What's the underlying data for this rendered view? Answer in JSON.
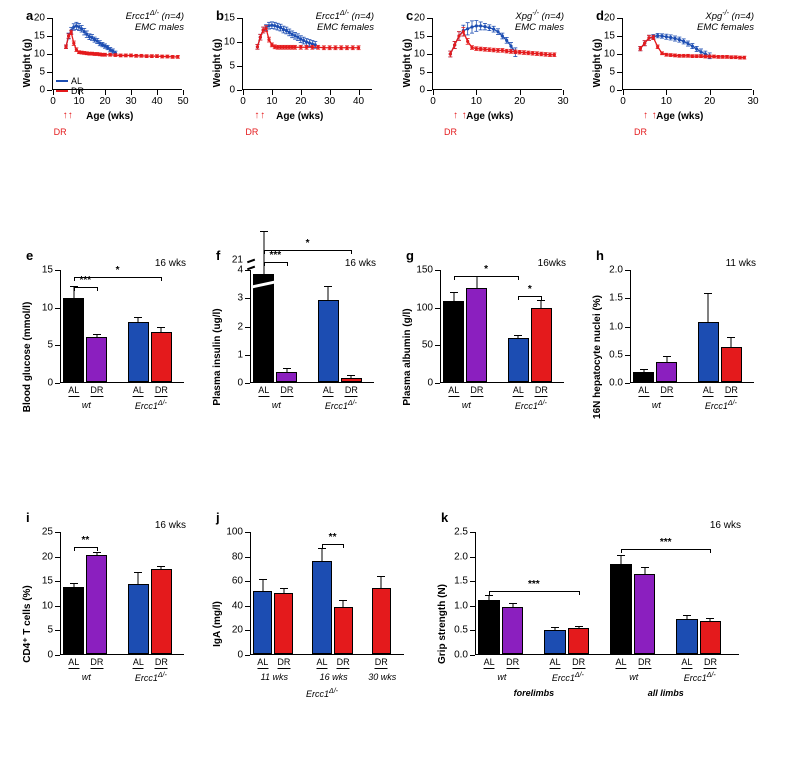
{
  "colors": {
    "al": "#1c4db2",
    "dr": "#e41a1c",
    "wt_al": "#000000",
    "wt_dr": "#8b1fbf",
    "mut_al": "#1c4db2",
    "mut_dr": "#e41a1c",
    "axis": "#000000",
    "bg": "#ffffff"
  },
  "linecharts": {
    "a": {
      "label": "a",
      "caption1": "Ercc1^(Δ/-) (n=4)",
      "caption2": "EMC males",
      "xlabel": "Age (wks)",
      "ylabel": "Weight (g)",
      "xlim": [
        0,
        50
      ],
      "ylim": [
        0,
        20
      ],
      "xtick_step": 10,
      "ytick_step": 5,
      "dr_marks": [
        6,
        8
      ],
      "al": {
        "x": [
          5,
          6,
          7,
          8,
          9,
          10,
          11,
          12,
          13,
          14,
          15,
          16,
          17,
          18,
          19,
          20,
          21,
          22,
          23,
          24
        ],
        "y": [
          12,
          15,
          16.5,
          17.5,
          17.8,
          17.5,
          17,
          16.2,
          15.5,
          14.8,
          14.6,
          14.0,
          13.6,
          13.0,
          12.6,
          12.2,
          11.8,
          11.2,
          10.8,
          10.2
        ],
        "err": [
          0.5,
          0.8,
          0.9,
          0.9,
          1.0,
          1.0,
          0.9,
          0.9,
          0.9,
          0.8,
          0.8,
          0.7,
          0.7,
          0.7,
          0.6,
          0.6,
          0.6,
          0.6,
          0.6,
          0.6
        ]
      },
      "dr": {
        "x": [
          5,
          6,
          7,
          8,
          9,
          10,
          11,
          12,
          13,
          14,
          15,
          16,
          17,
          18,
          19,
          20,
          22,
          24,
          26,
          28,
          30,
          32,
          34,
          36,
          38,
          40,
          42,
          44,
          46,
          48
        ],
        "y": [
          12,
          15,
          16,
          13,
          11.2,
          10.5,
          10.4,
          10.3,
          10.2,
          10.1,
          10.1,
          10.0,
          10.0,
          9.9,
          9.8,
          9.8,
          9.8,
          9.7,
          9.6,
          9.6,
          9.6,
          9.5,
          9.5,
          9.4,
          9.4,
          9.4,
          9.3,
          9.3,
          9.2,
          9.2
        ],
        "err": [
          0.5,
          0.6,
          0.6,
          0.6,
          0.5,
          0.4,
          0.4,
          0.4,
          0.4,
          0.4,
          0.4,
          0.4,
          0.4,
          0.4,
          0.4,
          0.4,
          0.4,
          0.4,
          0.4,
          0.4,
          0.4,
          0.4,
          0.4,
          0.4,
          0.4,
          0.4,
          0.4,
          0.4,
          0.4,
          0.4
        ]
      },
      "show_legend": true
    },
    "b": {
      "label": "b",
      "caption1": "Ercc1^(Δ/-) (n=4)",
      "caption2": "EMC females",
      "xlabel": "Age (wks)",
      "ylabel": "Weight (g)",
      "xlim": [
        0,
        45
      ],
      "ylim": [
        0,
        15
      ],
      "xtick_step": 10,
      "ytick_step": 5,
      "dr_marks": [
        6,
        8
      ],
      "al": {
        "x": [
          5,
          6,
          7,
          8,
          9,
          10,
          11,
          12,
          13,
          14,
          15,
          16,
          17,
          18,
          19,
          20,
          21,
          22,
          23,
          24,
          25
        ],
        "y": [
          9,
          11,
          12.5,
          13,
          13.4,
          13.5,
          13.4,
          13.2,
          13,
          12.6,
          12.4,
          12.0,
          11.6,
          11.3,
          11.0,
          10.6,
          10.3,
          10.0,
          9.8,
          9.6,
          9.4
        ],
        "err": [
          0.5,
          0.6,
          0.6,
          0.6,
          0.7,
          0.7,
          0.7,
          0.7,
          0.7,
          0.7,
          0.7,
          0.7,
          0.7,
          0.7,
          0.7,
          0.7,
          0.7,
          0.7,
          0.7,
          0.7,
          0.7
        ]
      },
      "dr": {
        "x": [
          5,
          6,
          7,
          8,
          9,
          10,
          11,
          12,
          13,
          14,
          15,
          16,
          17,
          18,
          20,
          22,
          24,
          26,
          28,
          30,
          32,
          34,
          36,
          38,
          40
        ],
        "y": [
          9,
          11,
          12.5,
          12.8,
          10.5,
          9.4,
          9.0,
          8.9,
          8.9,
          8.9,
          8.9,
          8.9,
          8.9,
          8.9,
          8.9,
          8.9,
          8.9,
          8.9,
          8.8,
          8.8,
          8.8,
          8.8,
          8.8,
          8.8,
          8.8
        ],
        "err": [
          0.5,
          0.6,
          0.6,
          0.6,
          0.5,
          0.4,
          0.4,
          0.4,
          0.4,
          0.4,
          0.4,
          0.4,
          0.4,
          0.4,
          0.4,
          0.4,
          0.4,
          0.4,
          0.4,
          0.4,
          0.4,
          0.4,
          0.4,
          0.4,
          0.4
        ]
      }
    },
    "c": {
      "label": "c",
      "caption1": "Xpg^(-/-) (n=4)",
      "caption2": "EMC males",
      "xlabel": "Age (wks)",
      "ylabel": "Weight (g)",
      "xlim": [
        0,
        30
      ],
      "ylim": [
        0,
        20
      ],
      "xtick_step": 10,
      "ytick_step": 5,
      "dr_marks": [
        6,
        8
      ],
      "al": {
        "x": [
          4,
          5,
          6,
          7,
          8,
          9,
          10,
          11,
          12,
          13,
          14,
          15,
          16,
          17,
          18,
          19
        ],
        "y": [
          10,
          12.5,
          15,
          16.5,
          17,
          17.5,
          17.8,
          17.8,
          17.6,
          17.3,
          16.9,
          16.2,
          15.0,
          13.8,
          12.2,
          10.5
        ],
        "err": [
          0.8,
          1.0,
          1.2,
          1.5,
          1.7,
          1.7,
          1.5,
          1.1,
          0.9,
          0.8,
          0.8,
          0.8,
          0.8,
          0.8,
          1.0,
          1.2
        ]
      },
      "dr": {
        "x": [
          4,
          5,
          6,
          7,
          8,
          9,
          10,
          11,
          12,
          13,
          14,
          15,
          16,
          17,
          18,
          19,
          20,
          21,
          22,
          23,
          24,
          25,
          26,
          27,
          28
        ],
        "y": [
          10,
          12.5,
          15,
          16.2,
          13.5,
          11.8,
          11.5,
          11.4,
          11.3,
          11.2,
          11.1,
          11.0,
          11.0,
          10.8,
          10.7,
          10.6,
          10.5,
          10.4,
          10.3,
          10.2,
          10.1,
          10.0,
          9.9,
          9.8,
          9.8
        ],
        "err": [
          0.8,
          1.0,
          1.2,
          1.2,
          0.8,
          0.5,
          0.5,
          0.5,
          0.5,
          0.5,
          0.5,
          0.5,
          0.5,
          0.5,
          0.5,
          0.5,
          0.5,
          0.5,
          0.5,
          0.5,
          0.5,
          0.5,
          0.5,
          0.5,
          0.5
        ]
      }
    },
    "d": {
      "label": "d",
      "caption1": "Xpg^(-/-) (n=4)",
      "caption2": "EMC females",
      "xlabel": "Age (wks)",
      "ylabel": "Weight (g)",
      "xlim": [
        0,
        30
      ],
      "ylim": [
        0,
        20
      ],
      "xtick_step": 10,
      "ytick_step": 5,
      "dr_marks": [
        6,
        8
      ],
      "al": {
        "x": [
          4,
          5,
          6,
          7,
          8,
          9,
          10,
          11,
          12,
          13,
          14,
          15,
          16,
          17,
          18,
          19,
          20
        ],
        "y": [
          11.5,
          13,
          14.5,
          14.8,
          15.1,
          15.0,
          14.8,
          14.6,
          14.3,
          14.0,
          13.5,
          12.9,
          12.2,
          11.4,
          10.6,
          10,
          9.5
        ],
        "err": [
          0.6,
          0.7,
          0.7,
          0.6,
          0.6,
          0.6,
          0.7,
          0.7,
          0.7,
          0.7,
          0.7,
          0.7,
          0.7,
          0.7,
          0.8,
          0.8,
          0.8
        ]
      },
      "dr": {
        "x": [
          4,
          5,
          6,
          7,
          8,
          9,
          10,
          11,
          12,
          13,
          14,
          15,
          16,
          17,
          18,
          19,
          20,
          21,
          22,
          23,
          24,
          25,
          26,
          27,
          28
        ],
        "y": [
          11.5,
          13,
          14.5,
          14.6,
          12.0,
          10.2,
          9.8,
          9.7,
          9.6,
          9.5,
          9.5,
          9.5,
          9.4,
          9.4,
          9.4,
          9.3,
          9.3,
          9.3,
          9.2,
          9.2,
          9.2,
          9.1,
          9.1,
          9.0,
          9.0
        ],
        "err": [
          0.6,
          0.7,
          0.7,
          0.6,
          0.5,
          0.4,
          0.4,
          0.4,
          0.4,
          0.4,
          0.4,
          0.4,
          0.4,
          0.4,
          0.4,
          0.4,
          0.4,
          0.4,
          0.4,
          0.4,
          0.4,
          0.4,
          0.4,
          0.4,
          0.4
        ]
      }
    }
  },
  "barcharts": {
    "e": {
      "label": "e",
      "ylabel": "Blood glucose (mmol/l)",
      "corner": "16 wks",
      "ylim": [
        0,
        15
      ],
      "ytick_step": 5,
      "groups": [
        {
          "title": "wt",
          "bars": [
            {
              "lab": "AL",
              "v": 11.2,
              "e": 1.4,
              "c": "wt_al"
            },
            {
              "lab": "DR",
              "v": 6.0,
              "e": 0.3,
              "c": "wt_dr"
            }
          ]
        },
        {
          "title": "Ercc1^(Δ/-)",
          "bars": [
            {
              "lab": "AL",
              "v": 8.0,
              "e": 0.5,
              "c": "mut_al"
            },
            {
              "lab": "DR",
              "v": 6.6,
              "e": 0.6,
              "c": "mut_dr"
            }
          ]
        }
      ],
      "sig": [
        {
          "from": 0,
          "to": 1,
          "text": "***",
          "y": 12.7
        },
        {
          "from": 0,
          "to": 3,
          "text": "*",
          "y": 14.1
        }
      ]
    },
    "f": {
      "label": "f",
      "ylabel": "Plasma insulin (ug/l)",
      "corner": "16 wks",
      "ylim": [
        0,
        4
      ],
      "ytick_step": 1,
      "break_upper": 21,
      "groups": [
        {
          "title": "wt",
          "bars": [
            {
              "lab": "AL",
              "v": 20.8,
              "e": 1.5,
              "c": "wt_al",
              "broken": true,
              "disp": 3.82
            },
            {
              "lab": "DR",
              "v": 0.35,
              "e": 0.1,
              "c": "wt_dr"
            }
          ]
        },
        {
          "title": "Ercc1^(Δ/-)",
          "bars": [
            {
              "lab": "AL",
              "v": 2.9,
              "e": 0.45,
              "c": "mut_al"
            },
            {
              "lab": "DR",
              "v": 0.15,
              "e": 0.08,
              "c": "mut_dr"
            }
          ]
        }
      ],
      "sig": [
        {
          "from": 0,
          "to": 1,
          "text": "***",
          "y": 4.15,
          "disp": true
        },
        {
          "from": 0,
          "to": 3,
          "text": "*",
          "y": 4.55,
          "disp": true
        }
      ]
    },
    "g": {
      "label": "g",
      "ylabel": "Plasma albumin (g/l)",
      "corner": "16wks",
      "ylim": [
        0,
        150
      ],
      "ytick_step": 50,
      "groups": [
        {
          "title": "wt",
          "bars": [
            {
              "lab": "AL",
              "v": 108,
              "e": 10,
              "c": "wt_al"
            },
            {
              "lab": "DR",
              "v": 125,
              "e": 14,
              "c": "wt_dr"
            }
          ]
        },
        {
          "title": "Ercc1^(Δ/-)",
          "bars": [
            {
              "lab": "AL",
              "v": 58,
              "e": 3,
              "c": "mut_al"
            },
            {
              "lab": "DR",
              "v": 98,
              "e": 9,
              "c": "mut_dr"
            }
          ]
        }
      ],
      "sig": [
        {
          "from": 0,
          "to": 2,
          "text": "*",
          "y": 142
        },
        {
          "from": 2,
          "to": 3,
          "text": "*",
          "y": 115
        }
      ]
    },
    "h": {
      "label": "h",
      "ylabel": "16N hepatocyte nuclei (%)",
      "corner": "11 wks",
      "ylim": [
        0,
        2.0
      ],
      "ytick_step": 0.5,
      "groups": [
        {
          "title": "wt",
          "bars": [
            {
              "lab": "AL",
              "v": 0.17,
              "e": 0.05,
              "c": "wt_al"
            },
            {
              "lab": "DR",
              "v": 0.35,
              "e": 0.1,
              "c": "wt_dr"
            }
          ]
        },
        {
          "title": "Ercc1^(Δ/-)",
          "bars": [
            {
              "lab": "AL",
              "v": 1.07,
              "e": 0.48,
              "c": "mut_al"
            },
            {
              "lab": "DR",
              "v": 0.62,
              "e": 0.16,
              "c": "mut_dr"
            }
          ]
        }
      ],
      "sig": []
    },
    "i": {
      "label": "i",
      "ylabel": "CD4⁺ T cells (%)",
      "corner": "16 wks",
      "ylim": [
        0,
        25
      ],
      "ytick_step": 5,
      "groups": [
        {
          "title": "wt",
          "bars": [
            {
              "lab": "AL",
              "v": 13.6,
              "e": 0.6,
              "c": "wt_al"
            },
            {
              "lab": "DR",
              "v": 20.2,
              "e": 0.3,
              "c": "wt_dr"
            }
          ]
        },
        {
          "title": "Ercc1^(Δ/-)",
          "bars": [
            {
              "lab": "AL",
              "v": 14.3,
              "e": 2.1,
              "c": "mut_al"
            },
            {
              "lab": "DR",
              "v": 17.2,
              "e": 0.4,
              "c": "mut_dr"
            }
          ]
        }
      ],
      "sig": [
        {
          "from": 0,
          "to": 1,
          "text": "**",
          "y": 22
        }
      ]
    },
    "j": {
      "label": "j",
      "ylabel": "IgA (mg/l)",
      "corner": "",
      "ylim": [
        0,
        100
      ],
      "ytick_step": 20,
      "groups": [
        {
          "title": "11 wks",
          "subgrp": "Ercc1^(Δ/-)",
          "bars": [
            {
              "lab": "AL",
              "v": 51,
              "e": 9,
              "c": "mut_al"
            },
            {
              "lab": "DR",
              "v": 50,
              "e": 3,
              "c": "mut_dr"
            }
          ]
        },
        {
          "title": "16 wks",
          "bars": [
            {
              "lab": "AL",
              "v": 76,
              "e": 9,
              "c": "mut_al"
            },
            {
              "lab": "DR",
              "v": 38,
              "e": 5,
              "c": "mut_dr"
            }
          ]
        },
        {
          "title": "30 wks",
          "bars": [
            {
              "lab": "DR",
              "v": 54,
              "e": 9,
              "c": "mut_dr"
            }
          ]
        }
      ],
      "sig": [
        {
          "from": 2,
          "to": 3,
          "text": "**",
          "y": 90
        }
      ]
    },
    "k": {
      "label": "k",
      "ylabel": "Grip strength (N)",
      "corner": "16 wks",
      "ylim": [
        0,
        2.5
      ],
      "ytick_step": 0.5,
      "groups": [
        {
          "title": "wt",
          "parent": "forelimbs",
          "bars": [
            {
              "lab": "AL",
              "v": 1.1,
              "e": 0.08,
              "c": "wt_al"
            },
            {
              "lab": "DR",
              "v": 0.95,
              "e": 0.06,
              "c": "wt_dr"
            }
          ]
        },
        {
          "title": "Ercc1^(Δ/-)",
          "bars": [
            {
              "lab": "AL",
              "v": 0.48,
              "e": 0.04,
              "c": "mut_al"
            },
            {
              "lab": "DR",
              "v": 0.52,
              "e": 0.03,
              "c": "mut_dr"
            }
          ]
        },
        {
          "title": "wt",
          "parent": "all limbs",
          "bars": [
            {
              "lab": "AL",
              "v": 1.83,
              "e": 0.16,
              "c": "wt_al"
            },
            {
              "lab": "DR",
              "v": 1.62,
              "e": 0.12,
              "c": "wt_dr"
            }
          ]
        },
        {
          "title": "Ercc1^(Δ/-)",
          "bars": [
            {
              "lab": "AL",
              "v": 0.72,
              "e": 0.05,
              "c": "mut_al"
            },
            {
              "lab": "DR",
              "v": 0.68,
              "e": 0.04,
              "c": "mut_dr"
            }
          ]
        }
      ],
      "sig": [
        {
          "from": 0,
          "to": 3,
          "text": "***",
          "y": 1.3
        },
        {
          "from": 4,
          "to": 7,
          "text": "***",
          "y": 2.15
        }
      ]
    }
  },
  "legend": {
    "al": "AL",
    "dr": "DR",
    "arrows_label": "DR"
  }
}
